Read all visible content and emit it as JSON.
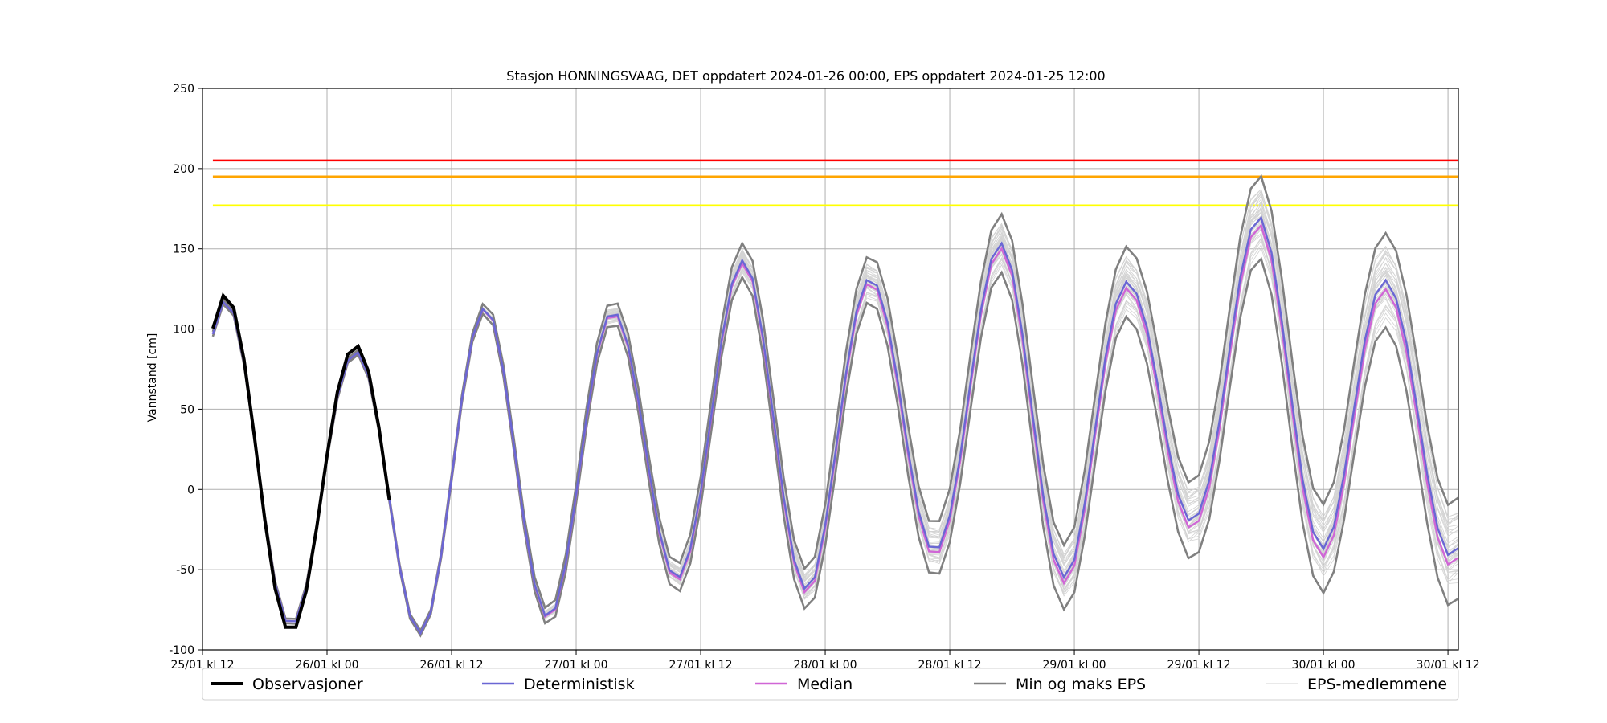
{
  "chart_data": {
    "type": "line",
    "title": "Stasjon HONNINGSVAAG, DET oppdatert 2024-01-26 00:00, EPS oppdatert 2024-01-25 12:00",
    "ylabel": "Vannstand [cm]",
    "xlabel": "",
    "xlim": [
      0,
      121
    ],
    "ylim": [
      -100,
      250
    ],
    "grid": true,
    "legend_position": "bottom",
    "x_ticks": [
      {
        "x": 0,
        "label": "25/01 kl 12"
      },
      {
        "x": 12,
        "label": "26/01 kl 00"
      },
      {
        "x": 24,
        "label": "26/01 kl 12"
      },
      {
        "x": 36,
        "label": "27/01 kl 00"
      },
      {
        "x": 48,
        "label": "27/01 kl 12"
      },
      {
        "x": 60,
        "label": "28/01 kl 00"
      },
      {
        "x": 72,
        "label": "28/01 kl 12"
      },
      {
        "x": 84,
        "label": "29/01 kl 00"
      },
      {
        "x": 96,
        "label": "29/01 kl 12"
      },
      {
        "x": 108,
        "label": "30/01 kl 00"
      },
      {
        "x": 120,
        "label": "30/01 kl 12"
      }
    ],
    "y_ticks": [
      250,
      200,
      150,
      100,
      50,
      0,
      -50,
      -100
    ],
    "threshold_lines": [
      {
        "y": 205,
        "color": "#ff0000"
      },
      {
        "y": 195,
        "color": "#ffa500"
      },
      {
        "y": 177,
        "color": "#ffff00"
      }
    ],
    "tide": {
      "semidiurnal_period_h": 12.42,
      "peak_x": [
        2.3,
        14.4,
        28.0,
        40.4,
        52.8,
        65.2,
        77.6,
        90.0,
        102.3,
        114.7
      ],
      "peak_y": [
        118,
        85,
        115,
        111,
        145,
        131,
        155,
        128,
        172,
        128
      ],
      "trough_x": [
        9.1,
        22.0,
        34.2,
        46.6,
        59.0,
        71.4,
        83.8,
        96.1,
        108.5,
        120.9
      ],
      "trough_y": [
        -85,
        -90,
        -79,
        -54,
        -63,
        -37,
        -56,
        -18,
        -38,
        -42
      ]
    },
    "series": [
      {
        "name": "Observasjoner",
        "color": "#000000",
        "x_range": [
          1,
          18
        ]
      },
      {
        "name": "Deterministisk",
        "color": "#6a67d4",
        "x_range": [
          1,
          121
        ]
      },
      {
        "name": "Median",
        "color": "#d066d6",
        "x_range": [
          1,
          121
        ]
      },
      {
        "name": "Min og maks EPS",
        "color": "#808080",
        "x_range": [
          1,
          121
        ]
      },
      {
        "name": "EPS-medlemmene",
        "color": "#d3d3d3",
        "x_range": [
          1,
          121
        ]
      }
    ]
  }
}
